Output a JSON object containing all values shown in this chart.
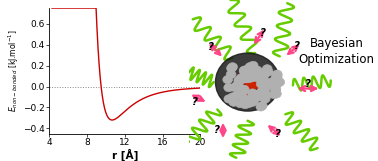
{
  "xlabel": "r [Å]",
  "xlim": [
    4,
    20
  ],
  "ylim": [
    -0.45,
    0.75
  ],
  "yticks": [
    -0.4,
    -0.2,
    0.0,
    0.2,
    0.4,
    0.6
  ],
  "xticks": [
    4,
    8,
    12,
    16,
    20
  ],
  "line_color": "#cc0000",
  "dotted_color": "#888888",
  "bg_color": "#ffffff",
  "lj_epsilon": 0.32,
  "lj_sigma": 9.5,
  "bayesian_text": "Bayesian\nOptimization",
  "bayesian_fontsize": 8.5,
  "label_fontsize": 7.5,
  "tick_fontsize": 6.5,
  "green_color": "#66cc00",
  "pink_color": "#ff4488",
  "gray_sphere_color": "#b0b0b0",
  "red_sphere_color": "#cc2200",
  "dark_blob_color": "#1a1a1a"
}
